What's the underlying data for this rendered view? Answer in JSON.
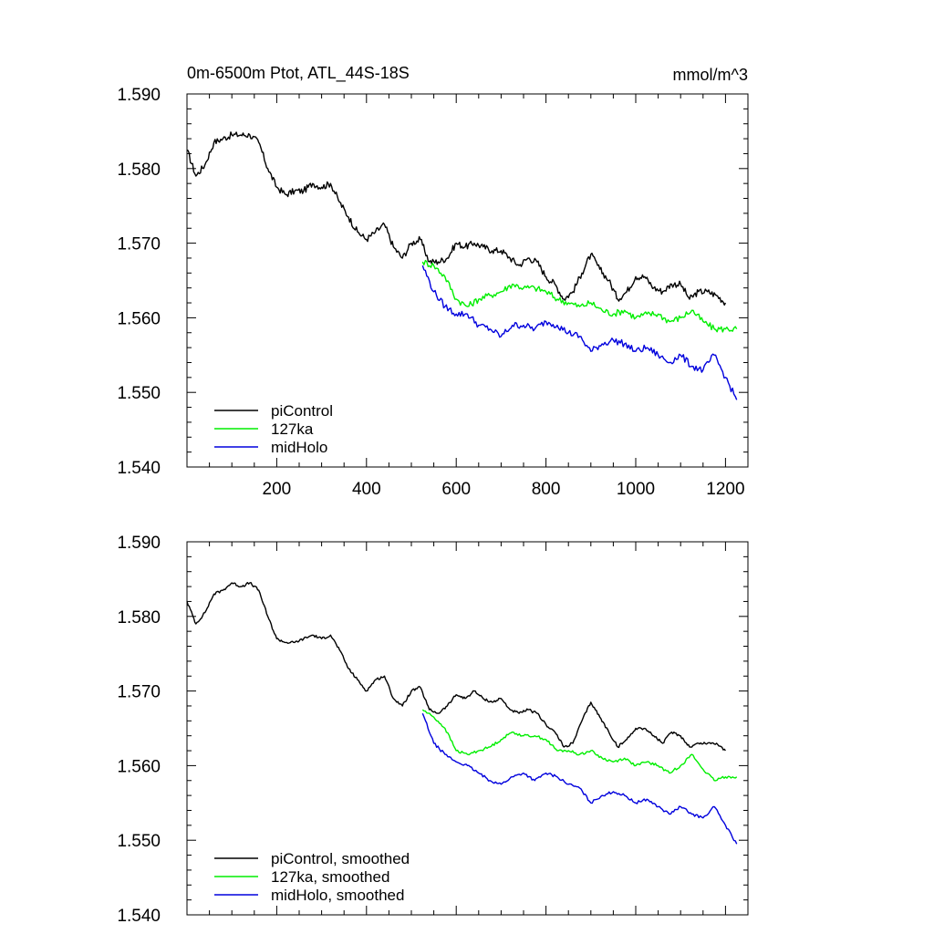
{
  "chart_data": [
    {
      "type": "line",
      "title": "0m-6500m Ptot, ATL_44S-18S",
      "units": "mmol/m^3",
      "xlim": [
        0,
        1250
      ],
      "ylim": [
        1.54,
        1.59
      ],
      "xticks": [
        200,
        400,
        600,
        800,
        1000,
        1200
      ],
      "xtick_labels": [
        "200",
        "400",
        "600",
        "800",
        "1000",
        "1200"
      ],
      "yticks": [
        1.54,
        1.55,
        1.56,
        1.57,
        1.58,
        1.59
      ],
      "ytick_labels": [
        "1.540",
        "1.550",
        "1.560",
        "1.570",
        "1.580",
        "1.590"
      ],
      "legend_position": "bottom-left",
      "series": [
        {
          "name": "piControl",
          "color": "#000000",
          "x": [
            0,
            20,
            40,
            60,
            80,
            100,
            120,
            140,
            160,
            180,
            200,
            220,
            240,
            260,
            280,
            300,
            320,
            340,
            360,
            380,
            400,
            420,
            440,
            460,
            480,
            500,
            520,
            540,
            560,
            580,
            600,
            620,
            640,
            660,
            680,
            700,
            720,
            740,
            760,
            780,
            800,
            820,
            840,
            860,
            880,
            900,
            920,
            940,
            960,
            980,
            1000,
            1020,
            1040,
            1060,
            1080,
            1100,
            1120,
            1140,
            1160,
            1180,
            1200
          ],
          "y": [
            1.5825,
            1.579,
            1.5805,
            1.5835,
            1.584,
            1.5845,
            1.5845,
            1.5845,
            1.5835,
            1.58,
            1.5775,
            1.5765,
            1.577,
            1.577,
            1.578,
            1.5775,
            1.578,
            1.5755,
            1.5735,
            1.5715,
            1.5705,
            1.5715,
            1.5725,
            1.5695,
            1.568,
            1.57,
            1.5705,
            1.5675,
            1.5675,
            1.568,
            1.57,
            1.5695,
            1.57,
            1.5695,
            1.569,
            1.569,
            1.568,
            1.567,
            1.568,
            1.5675,
            1.5655,
            1.5645,
            1.5625,
            1.5635,
            1.566,
            1.5685,
            1.5665,
            1.565,
            1.5625,
            1.5635,
            1.5655,
            1.5655,
            1.564,
            1.5635,
            1.5645,
            1.5645,
            1.5625,
            1.5635,
            1.5635,
            1.563,
            1.562
          ]
        },
        {
          "name": "127ka",
          "color": "#00ee00",
          "x": [
            525,
            550,
            575,
            600,
            625,
            650,
            675,
            700,
            725,
            750,
            775,
            800,
            825,
            850,
            875,
            900,
            925,
            950,
            975,
            1000,
            1025,
            1050,
            1075,
            1100,
            1125,
            1150,
            1175,
            1200,
            1225
          ],
          "y": [
            1.5675,
            1.567,
            1.5655,
            1.5625,
            1.5615,
            1.5625,
            1.563,
            1.5635,
            1.5645,
            1.564,
            1.564,
            1.5635,
            1.5625,
            1.562,
            1.5615,
            1.562,
            1.561,
            1.5605,
            1.561,
            1.56,
            1.5605,
            1.5605,
            1.5595,
            1.56,
            1.561,
            1.5595,
            1.5585,
            1.5585,
            1.5585
          ]
        },
        {
          "name": "midHolo",
          "color": "#0000dd",
          "x": [
            525,
            550,
            575,
            600,
            625,
            650,
            675,
            700,
            725,
            750,
            775,
            800,
            825,
            850,
            875,
            900,
            925,
            950,
            975,
            1000,
            1025,
            1050,
            1075,
            1100,
            1125,
            1150,
            1175,
            1200,
            1225
          ],
          "y": [
            1.567,
            1.5635,
            1.5615,
            1.5605,
            1.5605,
            1.559,
            1.5585,
            1.5575,
            1.559,
            1.559,
            1.5585,
            1.5595,
            1.559,
            1.558,
            1.5575,
            1.5555,
            1.5565,
            1.557,
            1.5565,
            1.5555,
            1.556,
            1.555,
            1.554,
            1.555,
            1.5535,
            1.553,
            1.555,
            1.552,
            1.549
          ]
        }
      ]
    },
    {
      "type": "line",
      "xlim": [
        0,
        1250
      ],
      "ylim": [
        1.54,
        1.59
      ],
      "xticks": [
        200,
        400,
        600,
        800,
        1000,
        1200
      ],
      "yticks": [
        1.54,
        1.55,
        1.56,
        1.57,
        1.58,
        1.59
      ],
      "ytick_labels": [
        "1.540",
        "1.550",
        "1.560",
        "1.570",
        "1.580",
        "1.590"
      ],
      "legend_position": "bottom-left",
      "series": [
        {
          "name": "piControl, smoothed",
          "color": "#000000",
          "x": [
            0,
            20,
            40,
            60,
            80,
            100,
            120,
            140,
            160,
            180,
            200,
            220,
            240,
            260,
            280,
            300,
            320,
            340,
            360,
            380,
            400,
            420,
            440,
            460,
            480,
            500,
            520,
            540,
            560,
            580,
            600,
            620,
            640,
            660,
            680,
            700,
            720,
            740,
            760,
            780,
            800,
            820,
            840,
            860,
            880,
            900,
            920,
            940,
            960,
            980,
            1000,
            1020,
            1040,
            1060,
            1080,
            1100,
            1120,
            1140,
            1160,
            1180,
            1200
          ],
          "y": [
            1.582,
            1.579,
            1.5805,
            1.583,
            1.5835,
            1.5845,
            1.584,
            1.5845,
            1.5835,
            1.58,
            1.577,
            1.5765,
            1.5765,
            1.577,
            1.5775,
            1.577,
            1.5775,
            1.5755,
            1.573,
            1.5715,
            1.57,
            1.5715,
            1.572,
            1.569,
            1.568,
            1.57,
            1.5705,
            1.5675,
            1.567,
            1.568,
            1.5695,
            1.569,
            1.57,
            1.569,
            1.5685,
            1.569,
            1.5675,
            1.567,
            1.5675,
            1.567,
            1.5655,
            1.5645,
            1.5625,
            1.563,
            1.566,
            1.5685,
            1.5665,
            1.5645,
            1.5625,
            1.5635,
            1.565,
            1.565,
            1.564,
            1.563,
            1.5645,
            1.564,
            1.5625,
            1.563,
            1.563,
            1.563,
            1.562
          ]
        },
        {
          "name": "127ka, smoothed",
          "color": "#00ee00",
          "x": [
            525,
            550,
            575,
            600,
            625,
            650,
            675,
            700,
            725,
            750,
            775,
            800,
            825,
            850,
            875,
            900,
            925,
            950,
            975,
            1000,
            1025,
            1050,
            1075,
            1100,
            1125,
            1150,
            1175,
            1200,
            1225
          ],
          "y": [
            1.5675,
            1.5665,
            1.565,
            1.562,
            1.5615,
            1.562,
            1.5625,
            1.5635,
            1.5645,
            1.564,
            1.564,
            1.5635,
            1.562,
            1.562,
            1.5615,
            1.562,
            1.561,
            1.5605,
            1.561,
            1.56,
            1.5605,
            1.56,
            1.559,
            1.56,
            1.5615,
            1.5595,
            1.558,
            1.5585,
            1.5585
          ]
        },
        {
          "name": "midHolo, smoothed",
          "color": "#0000dd",
          "x": [
            525,
            550,
            575,
            600,
            625,
            650,
            675,
            700,
            725,
            750,
            775,
            800,
            825,
            850,
            875,
            900,
            925,
            950,
            975,
            1000,
            1025,
            1050,
            1075,
            1100,
            1125,
            1150,
            1175,
            1200,
            1225
          ],
          "y": [
            1.567,
            1.563,
            1.5615,
            1.5605,
            1.56,
            1.559,
            1.558,
            1.5575,
            1.5585,
            1.559,
            1.558,
            1.559,
            1.5585,
            1.5575,
            1.557,
            1.555,
            1.556,
            1.5565,
            1.556,
            1.555,
            1.5555,
            1.5545,
            1.5535,
            1.5545,
            1.5535,
            1.553,
            1.5545,
            1.552,
            1.5495
          ]
        }
      ]
    }
  ]
}
